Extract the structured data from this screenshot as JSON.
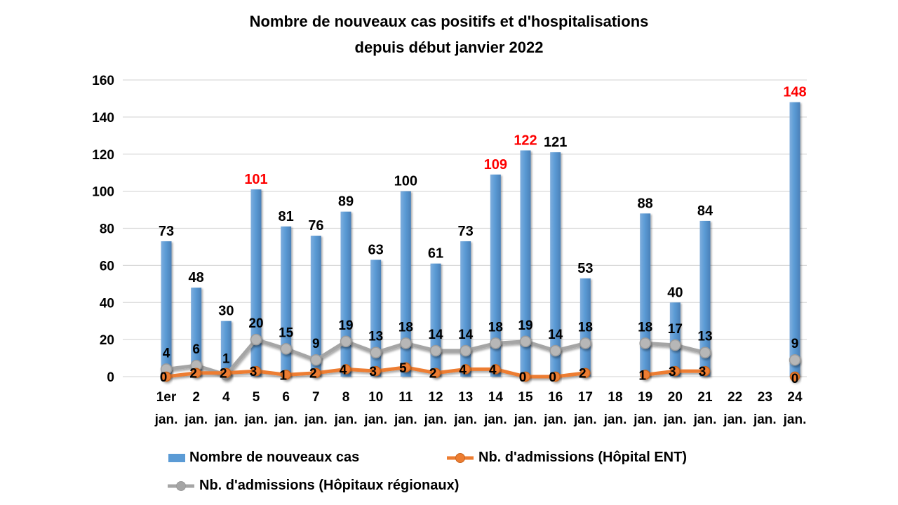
{
  "chart_data": {
    "type": "bar",
    "title": "Nombre de nouveaux cas positifs et d'hospitalisations",
    "subtitle": "depuis début janvier 2022",
    "categories": [
      "1er",
      "2",
      "4",
      "5",
      "6",
      "7",
      "8",
      "10",
      "11",
      "12",
      "13",
      "14",
      "15",
      "16",
      "17",
      "18",
      "19",
      "20",
      "21",
      "22",
      "23",
      "24"
    ],
    "category_unit": "jan.",
    "y_axis": {
      "min": 0,
      "max": 160,
      "step": 20,
      "tick_labels": [
        "0",
        "20",
        "40",
        "60",
        "80",
        "100",
        "120",
        "140",
        "160"
      ]
    },
    "grid": true,
    "legend_position": "bottom",
    "series": [
      {
        "name": "Nombre de nouveaux cas",
        "type": "bar",
        "color": "#5B9BD5",
        "values": [
          73,
          48,
          30,
          101,
          81,
          76,
          89,
          63,
          100,
          61,
          73,
          109,
          122,
          121,
          53,
          null,
          88,
          40,
          84,
          null,
          null,
          148
        ],
        "label_color": "#000000",
        "highlight_label_color": "#FE0000",
        "highlighted_indexes": [
          3,
          11,
          12,
          21
        ]
      },
      {
        "name": "Nb. d'admissions (Hôpital ENT)",
        "type": "line",
        "color": "#ED7D31",
        "values": [
          0,
          2,
          2,
          3,
          1,
          2,
          4,
          3,
          5,
          2,
          4,
          4,
          0,
          0,
          2,
          null,
          1,
          3,
          3,
          null,
          null,
          0
        ]
      },
      {
        "name": "Nb. d'admissions (Hôpitaux régionaux)",
        "type": "line",
        "color": "#A5A5A5",
        "values": [
          4,
          6,
          1,
          20,
          15,
          9,
          19,
          13,
          18,
          14,
          14,
          18,
          19,
          14,
          18,
          null,
          18,
          17,
          13,
          null,
          null,
          9
        ]
      }
    ]
  },
  "colors": {
    "grid": "#D9D9D9",
    "background": "#FFFFFF",
    "text": "#000000",
    "bar_accent": "#5B9BD5",
    "ent_line": "#ED7D31",
    "regional_line": "#A5A5A5",
    "highlight": "#FE0000"
  }
}
